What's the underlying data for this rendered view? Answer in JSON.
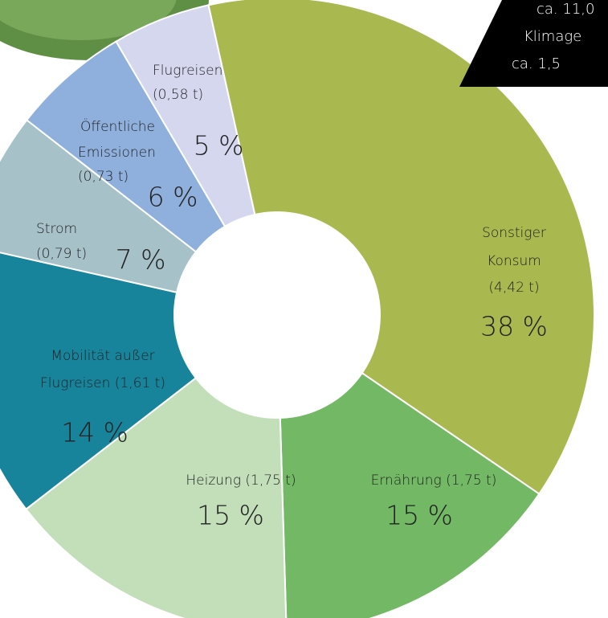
{
  "chart_data": {
    "type": "donut",
    "categories": [
      "Sonstiger Konsum",
      "Ernährung",
      "Heizung",
      "Mobilität außer Flugreisen",
      "Strom",
      "Öffentliche Emissionen",
      "Flugreisen"
    ],
    "labels": [
      [
        "Sonstiger",
        "Konsum",
        "(4,42 t)"
      ],
      [
        "Ernährung (1,75 t)"
      ],
      [
        "Heizung (1,75 t)"
      ],
      [
        "Mobilität außer",
        "Flugreisen (1,61 t)"
      ],
      [
        "Strom",
        "(0,79 t)"
      ],
      [
        "Öffentliche",
        "Emissionen",
        "(0,73 t)"
      ],
      [
        "Flugreisen",
        "(0,58 t)"
      ]
    ],
    "values": [
      38,
      15,
      15,
      14,
      7,
      6,
      5
    ],
    "value_labels": [
      "38 %",
      "15 %",
      "15 %",
      "14 %",
      "7 %",
      "6 %",
      "5 %"
    ],
    "colors": [
      "#a9b84f",
      "#72b865",
      "#c3dfba",
      "#17849b",
      "#a7c1c9",
      "#8fb0dc",
      "#d4d7ee"
    ],
    "callout": [
      "ca. 11,0",
      "Klimage",
      "ca. 1,5"
    ]
  }
}
